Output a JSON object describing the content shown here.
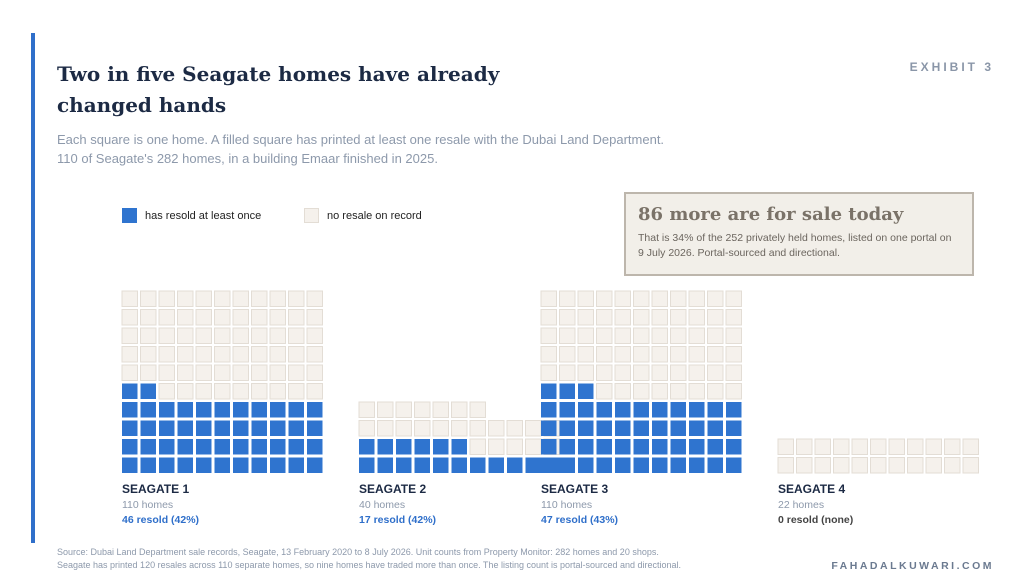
{
  "exhibit": "EXHIBIT 3",
  "title": "Two in five Seagate homes have already changed hands",
  "subtitle_line1": "Each square is one home. A filled square has printed at least one resale with the Dubai Land Department.",
  "subtitle_line2": "110 of Seagate's 282 homes, in a building Emaar finished in 2025.",
  "legend": {
    "filled": "has resold at least once",
    "empty": "no resale on record"
  },
  "callout": {
    "headline": "86 more are for sale today",
    "body": "That is 34% of the 252 privately held homes, listed on one portal on 9 July 2026. Portal-sourced and directional."
  },
  "colors": {
    "accent": "#2f6fca",
    "filled": "#2f74cf",
    "empty": "#f5f1ec",
    "empty_border": "#e3ddd5",
    "none_text": "#444444"
  },
  "chart_data": {
    "type": "waffle",
    "unit": "one home",
    "groups": [
      {
        "name": "SEAGATE 1",
        "homes_label": "110 homes",
        "resold_label": "46 resold  (42%)",
        "total": 110,
        "resold": 46
      },
      {
        "name": "SEAGATE 2",
        "homes_label": "40 homes",
        "resold_label": "17 resold  (42%)",
        "total": 40,
        "resold": 17
      },
      {
        "name": "SEAGATE 3",
        "homes_label": "110 homes",
        "resold_label": "47 resold  (43%)",
        "total": 110,
        "resold": 47
      },
      {
        "name": "SEAGATE 4",
        "homes_label": "22 homes",
        "resold_label": "0 resold  (none)",
        "total": 22,
        "resold": 0
      }
    ]
  },
  "source_line1": "Source: Dubai Land Department sale records, Seagate, 13 February 2020 to 8 July 2026. Unit counts from Property Monitor: 282 homes and 20 shops.",
  "source_line2": "Seagate has printed 120 resales across 110 separate homes, so nine homes have traded more than once. The listing count is portal-sourced and directional.",
  "site": "FAHADALKUWARI.COM"
}
